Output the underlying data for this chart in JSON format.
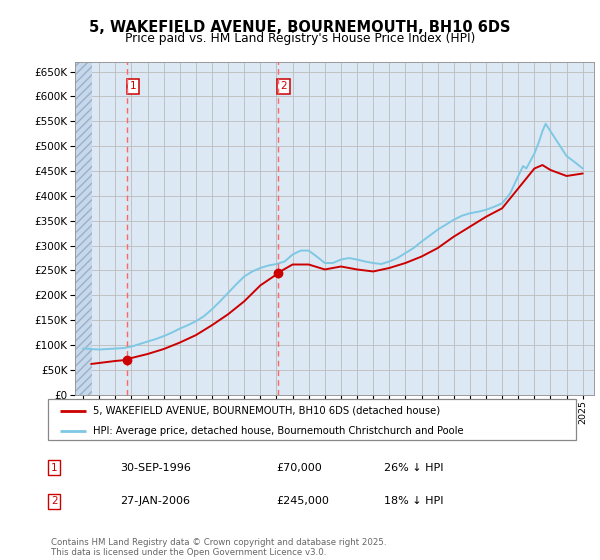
{
  "title": "5, WAKEFIELD AVENUE, BOURNEMOUTH, BH10 6DS",
  "subtitle": "Price paid vs. HM Land Registry's House Price Index (HPI)",
  "legend_line1": "5, WAKEFIELD AVENUE, BOURNEMOUTH, BH10 6DS (detached house)",
  "legend_line2": "HPI: Average price, detached house, Bournemouth Christchurch and Poole",
  "footer": "Contains HM Land Registry data © Crown copyright and database right 2025.\nThis data is licensed under the Open Government Licence v3.0.",
  "sale1_date": "30-SEP-1996",
  "sale1_price": "£70,000",
  "sale1_hpi": "26% ↓ HPI",
  "sale2_date": "27-JAN-2006",
  "sale2_price": "£245,000",
  "sale2_hpi": "18% ↓ HPI",
  "sale1_x": 1996.75,
  "sale1_y": 70000,
  "sale2_x": 2006.07,
  "sale2_y": 245000,
  "hpi_color": "#7ec8e3",
  "price_color": "#cc0000",
  "vline_color": "#ff6666",
  "grid_color": "#bbbbbb",
  "background_color": "#dde8f5",
  "hatch_bg": "#c8d8eb",
  "ylim": [
    0,
    670000
  ],
  "xlim_start": 1993.5,
  "xlim_end": 2025.7,
  "hpi_years": [
    1994,
    1994.5,
    1995,
    1995.5,
    1996,
    1996.5,
    1997,
    1997.5,
    1998,
    1998.5,
    1999,
    1999.5,
    2000,
    2000.5,
    2001,
    2001.5,
    2002,
    2002.5,
    2003,
    2003.5,
    2004,
    2004.5,
    2005,
    2005.5,
    2006,
    2006.3,
    2006.5,
    2007,
    2007.5,
    2008,
    2008.5,
    2009,
    2009.5,
    2010,
    2010.5,
    2011,
    2011.5,
    2012,
    2012.5,
    2013,
    2013.5,
    2014,
    2014.5,
    2015,
    2015.5,
    2016,
    2016.5,
    2017,
    2017.5,
    2018,
    2018.5,
    2019,
    2019.5,
    2020,
    2020.5,
    2021,
    2021.3,
    2021.5,
    2022,
    2022.3,
    2022.5,
    2022.7,
    2023,
    2023.5,
    2024,
    2024.5,
    2025
  ],
  "hpi_vals": [
    93000,
    92000,
    91000,
    92000,
    93000,
    94000,
    97000,
    102000,
    107000,
    112000,
    118000,
    125000,
    133000,
    140000,
    148000,
    158000,
    172000,
    188000,
    205000,
    222000,
    238000,
    248000,
    255000,
    260000,
    263000,
    266000,
    268000,
    282000,
    290000,
    290000,
    278000,
    265000,
    265000,
    272000,
    275000,
    272000,
    268000,
    265000,
    263000,
    268000,
    275000,
    285000,
    295000,
    308000,
    320000,
    332000,
    342000,
    352000,
    360000,
    365000,
    368000,
    372000,
    378000,
    385000,
    405000,
    440000,
    460000,
    455000,
    485000,
    510000,
    530000,
    545000,
    530000,
    505000,
    480000,
    468000,
    455000
  ],
  "price_years": [
    1994.5,
    1995,
    1995.5,
    1996,
    1996.5,
    1996.75,
    1997,
    1998,
    1999,
    2000,
    2001,
    2002,
    2003,
    2004,
    2005,
    2006,
    2006.07,
    2007,
    2008,
    2009,
    2010,
    2011,
    2012,
    2013,
    2014,
    2015,
    2016,
    2017,
    2018,
    2019,
    2020,
    2021,
    2022,
    2022.5,
    2023,
    2024,
    2025
  ],
  "price_vals": [
    62000,
    64000,
    66000,
    68000,
    69500,
    70000,
    74000,
    82000,
    92000,
    105000,
    120000,
    140000,
    162000,
    188000,
    220000,
    242000,
    245000,
    262000,
    262000,
    252000,
    258000,
    252000,
    248000,
    255000,
    265000,
    278000,
    295000,
    318000,
    338000,
    358000,
    375000,
    415000,
    455000,
    462000,
    452000,
    440000,
    445000
  ]
}
